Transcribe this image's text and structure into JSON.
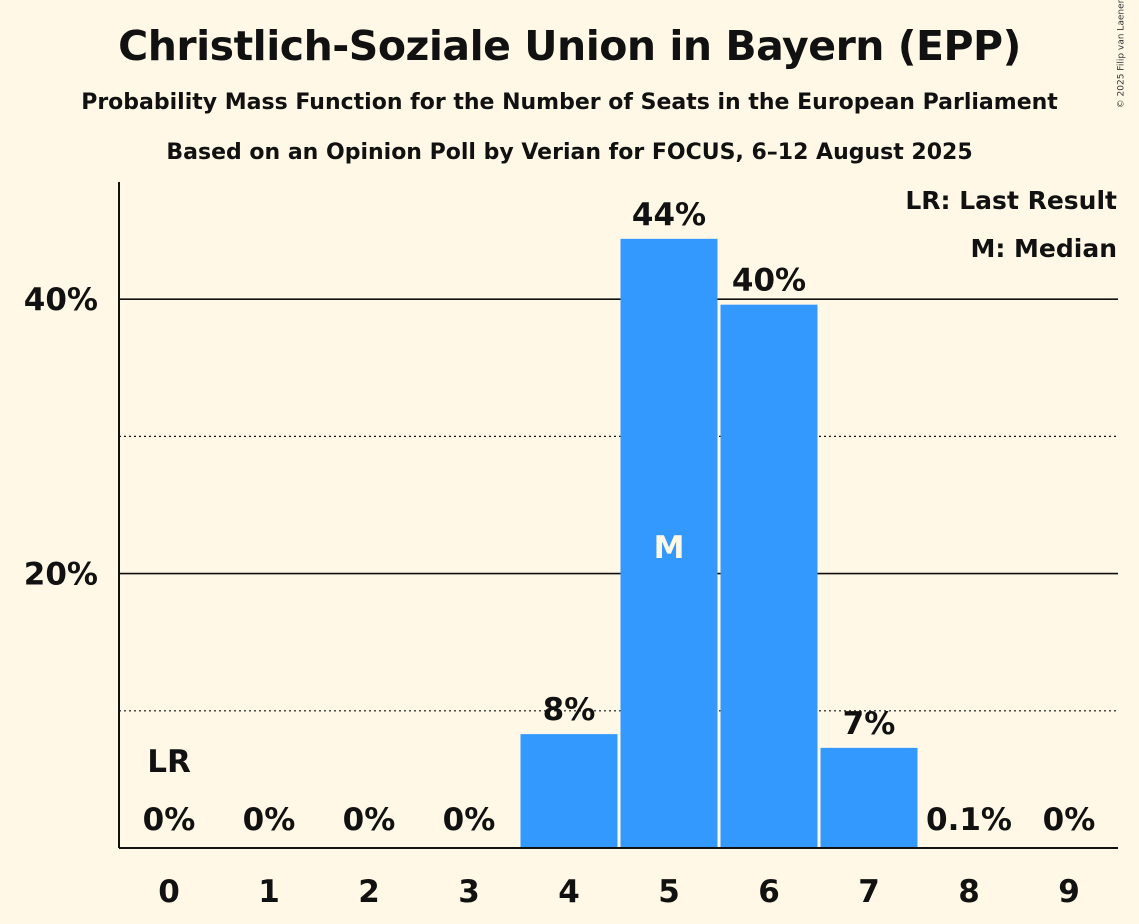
{
  "title": "Christlich-Soziale Union in Bayern (EPP)",
  "subtitle": "Probability Mass Function for the Number of Seats in the European Parliament",
  "source_line": "Based on an Opinion Poll by Verian for FOCUS, 6–12 August 2025",
  "copyright": "© 2025 Filip van Laenen",
  "legend": {
    "last_result": "LR: Last Result",
    "median": "M: Median"
  },
  "colors": {
    "background": "#FFF8E6",
    "bar": "#3399FF",
    "text": "#111111"
  },
  "chart_data": {
    "type": "bar",
    "categories": [
      "0",
      "1",
      "2",
      "3",
      "4",
      "5",
      "6",
      "7",
      "8",
      "9"
    ],
    "values": [
      0,
      0,
      0,
      0,
      8.3,
      44.4,
      39.6,
      7.3,
      0.1,
      0
    ],
    "value_labels": [
      "0%",
      "0%",
      "0%",
      "0%",
      "8%",
      "44%",
      "40%",
      "7%",
      "0.1%",
      "0%"
    ],
    "last_result_index": 0,
    "last_result_label": "LR",
    "median_index": 5,
    "median_label": "M",
    "ylim": [
      0,
      48
    ],
    "yticks": [
      20,
      40
    ],
    "ytick_labels": [
      "20%",
      "40%"
    ],
    "minor_gridlines": [
      10,
      30
    ],
    "xlabel": "",
    "ylabel": "",
    "legend_position": "top-right"
  }
}
